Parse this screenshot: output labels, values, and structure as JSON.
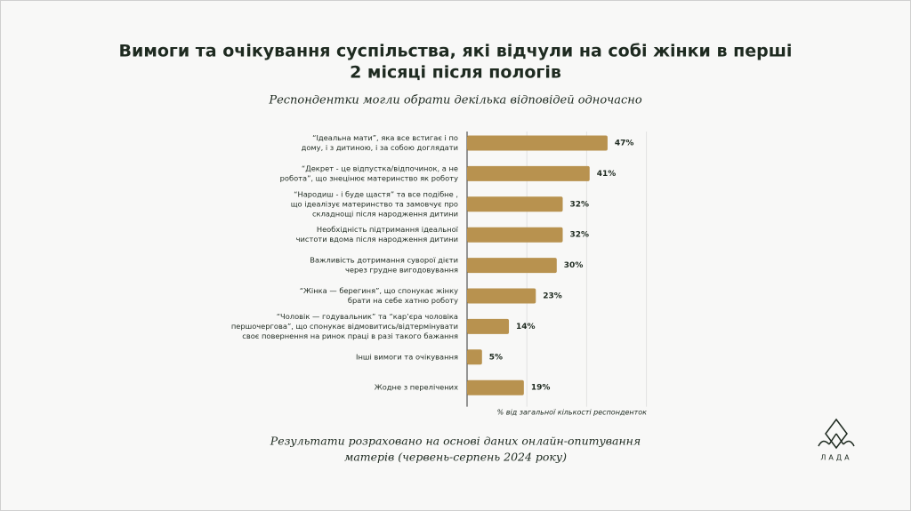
{
  "header": {
    "title": [
      "Вимоги та очікування суспільства, які відчули на собі жінки в перші",
      "2 місяці після пологів"
    ],
    "subtitle": "Респондентки могли обрати декілька відповідей одночасно"
  },
  "chart_data": {
    "type": "bar",
    "orientation": "horizontal",
    "categories": [
      [
        "“Ідеальна мати”, яка все встигає і по",
        "дому, і з дитиною, і за собою доглядати"
      ],
      [
        "“Декрет - це відпустка/відпочинок, а не",
        "робота”, що знецінює материнство як роботу"
      ],
      [
        "“Народиш - і буде щастя” та все подібне ,",
        "що ідеалізує материнство та замовчує про",
        "складнощі після народження дитини"
      ],
      [
        "Необхідність підтримання ідеальної",
        "чистоти вдома після народження дитини"
      ],
      [
        "Важливість дотримання суворої дієти",
        "через грудне вигодовування"
      ],
      [
        "“Жінка — берегиня”, що спонукає жінку",
        "брати на себе хатню роботу"
      ],
      [
        "“Чоловік — годувальник” та “кар’єра чоловіка",
        "першочергова”, що спонукає відмовитись/відтермінувати",
        "своє повернення на ринок праці в разі такого бажання"
      ],
      [
        "Інші вимоги та очікування"
      ],
      [
        "Жодне з перелічених"
      ]
    ],
    "values": [
      47,
      41,
      32,
      32,
      30,
      23,
      14,
      5,
      19
    ],
    "value_labels": [
      "47%",
      "41%",
      "32%",
      "32%",
      "30%",
      "23%",
      "14%",
      "5%",
      "19%"
    ],
    "color": "#b8924f",
    "xlim": [
      0,
      60
    ],
    "xticks": [
      20,
      40,
      60
    ],
    "grid": true,
    "axis_note": "% від загальної кількості респонденток"
  },
  "footer": {
    "note": [
      "Результати розраховано на основі даних онлайн-опитування",
      "матерів (червень-серпень 2024 року)"
    ],
    "logo": "ЛАДА"
  }
}
